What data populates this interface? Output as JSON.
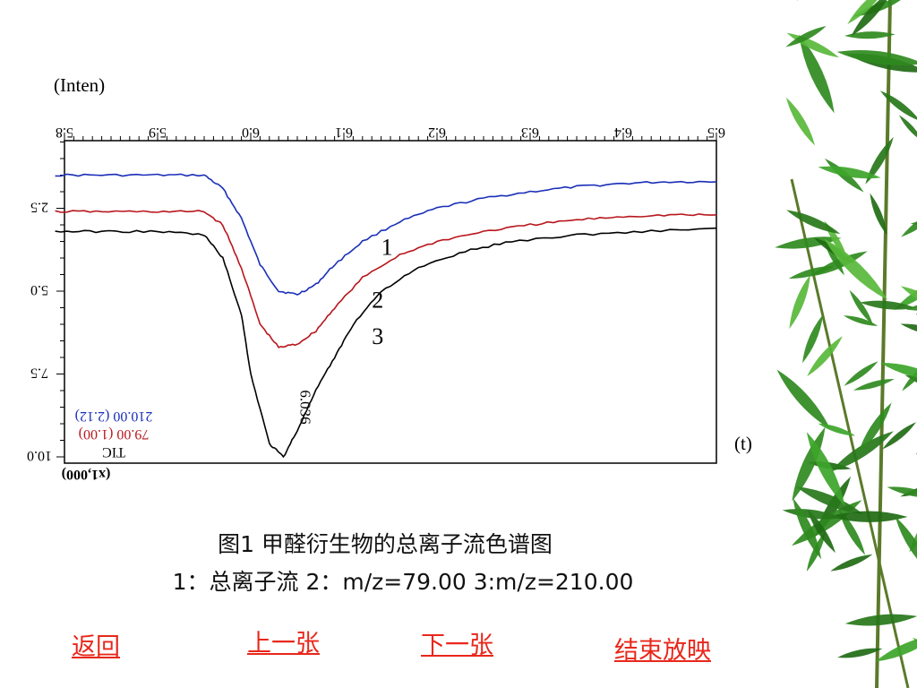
{
  "chart_data": {
    "type": "line",
    "ylabel": "(Inten)",
    "xlabel": "(t)",
    "x_axis_mirrored_ticks": [
      "5.8",
      "5.9",
      "6.0",
      "6.1",
      "6.2",
      "6.3",
      "6.4",
      "6.5"
    ],
    "y_axis_mirrored_ticks": [
      "2.5",
      "5.0",
      "7.5",
      "10.0"
    ],
    "y_scale_note": "(x1,000)",
    "xlim": [
      5.8,
      6.5
    ],
    "peak_label": "6.036",
    "legend": [
      {
        "text": "210.00 (2.12)",
        "color": "#1a2fb8"
      },
      {
        "text": "79.00 (1.00)",
        "color": "#b8161c"
      },
      {
        "text": "TIC",
        "color": "#000000"
      }
    ],
    "series": [
      {
        "name": "1",
        "color": "#1a2fb8",
        "x": [
          5.79,
          5.84,
          5.9,
          5.95,
          5.97,
          5.99,
          6.01,
          6.03,
          6.05,
          6.07,
          6.09,
          6.12,
          6.16,
          6.2,
          6.25,
          6.3,
          6.35,
          6.4,
          6.45,
          6.5
        ],
        "y": [
          1.5,
          1.5,
          1.5,
          1.5,
          1.9,
          2.8,
          4.2,
          5.0,
          5.1,
          4.8,
          4.2,
          3.5,
          2.9,
          2.5,
          2.2,
          2.0,
          1.85,
          1.75,
          1.7,
          1.7
        ]
      },
      {
        "name": "2",
        "color": "#b8161c",
        "x": [
          5.79,
          5.84,
          5.9,
          5.95,
          5.97,
          5.99,
          6.01,
          6.03,
          6.05,
          6.07,
          6.09,
          6.12,
          6.16,
          6.2,
          6.25,
          6.3,
          6.35,
          6.4,
          6.45,
          6.5
        ],
        "y": [
          2.6,
          2.6,
          2.6,
          2.6,
          3.0,
          4.3,
          6.0,
          6.7,
          6.6,
          6.2,
          5.5,
          4.6,
          3.9,
          3.5,
          3.2,
          3.0,
          2.85,
          2.75,
          2.7,
          2.7
        ]
      },
      {
        "name": "3",
        "color": "#000000",
        "x": [
          5.79,
          5.84,
          5.9,
          5.95,
          5.97,
          5.99,
          6.0,
          6.02,
          6.035,
          6.05,
          6.07,
          6.09,
          6.11,
          6.14,
          6.18,
          6.23,
          6.28,
          6.35,
          6.42,
          6.5
        ],
        "y": [
          3.2,
          3.2,
          3.2,
          3.3,
          4.0,
          5.7,
          7.5,
          9.6,
          10.0,
          9.2,
          8.0,
          7.0,
          6.0,
          5.0,
          4.3,
          3.8,
          3.5,
          3.3,
          3.2,
          3.1
        ]
      }
    ]
  },
  "caption": {
    "line1": "图1    甲醛衍生物的总离子流色谱图",
    "line2": "1：总离子流 2：m/z=79.00 3:m/z=210.00"
  },
  "nav": {
    "back": "返回",
    "prev": "上一张",
    "next": "下一张",
    "end": "结束放映"
  },
  "colors": {
    "nav": "#e8271b",
    "leaf": "#2f8a1e"
  }
}
